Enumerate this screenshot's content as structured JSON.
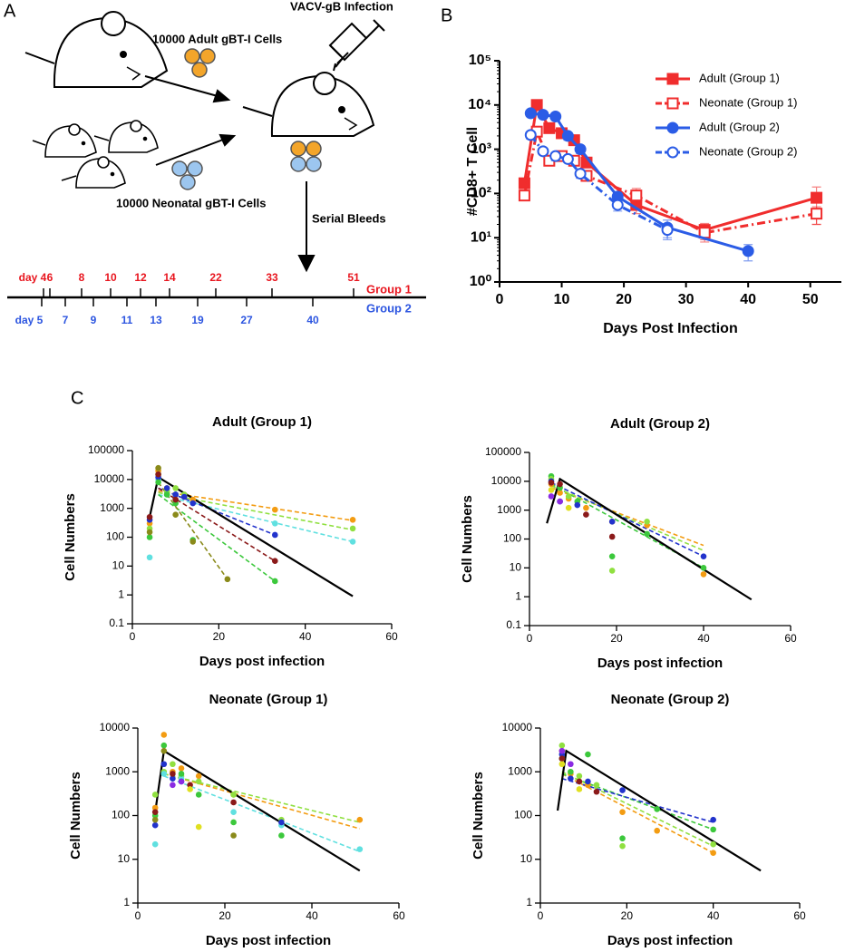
{
  "panel_labels": [
    "A",
    "B",
    "C"
  ],
  "diagram": {
    "infection": "VACV-gB Infection",
    "adult_cells": "10000 Adult gBT-I Cells",
    "neonatal_cells": "10000 Neonatal gBT-I Cells",
    "serial_bleeds": "Serial Bleeds",
    "group1_label": "Group 1",
    "group2_label": "Group 2",
    "group1_days": [
      "day 4",
      "6",
      "8",
      "10",
      "12",
      "14",
      "22",
      "33",
      "51"
    ],
    "group2_days": [
      "day 5",
      "7",
      "9",
      "11",
      "13",
      "19",
      "27",
      "40"
    ]
  },
  "chart_data": [
    {
      "type": "line",
      "xlabel": "Days Post Infection",
      "ylabel": "#CD8+ T Cell",
      "log_y": true,
      "xlim": [
        0,
        55
      ],
      "xticks": [
        0,
        10,
        20,
        30,
        40,
        50
      ],
      "ylim": [
        1,
        100000
      ],
      "yticks": [
        {
          "value": 1,
          "label": "10⁰"
        },
        {
          "value": 10,
          "label": "10¹"
        },
        {
          "value": 100,
          "label": "10²"
        },
        {
          "value": 1000,
          "label": "10³"
        },
        {
          "value": 10000,
          "label": "10⁴"
        },
        {
          "value": 100000,
          "label": "10⁵"
        }
      ],
      "legend": "top-right",
      "series": [
        {
          "name": "Adult (Group 1)",
          "color": "#f02d2d",
          "marker": "square",
          "filled": true,
          "dashed": false,
          "x": [
            4,
            6,
            8,
            10,
            12,
            14,
            22,
            33,
            51
          ],
          "values": [
            170,
            10000,
            3000,
            2300,
            1600,
            500,
            55,
            15,
            80
          ],
          "errors": [
            30,
            1500,
            500,
            400,
            300,
            100,
            20,
            6,
            60
          ]
        },
        {
          "name": "Neonate (Group 1)",
          "color": "#f02d2d",
          "marker": "square",
          "filled": false,
          "dashed": true,
          "x": [
            4,
            6,
            8,
            10,
            12,
            14,
            22,
            33,
            51
          ],
          "values": [
            90,
            2500,
            550,
            700,
            550,
            250,
            90,
            13,
            35
          ],
          "errors": [
            20,
            500,
            100,
            150,
            100,
            60,
            40,
            5,
            15
          ]
        },
        {
          "name": "Adult  (Group 2)",
          "color": "#2b5ce6",
          "marker": "circle",
          "filled": true,
          "dashed": false,
          "x": [
            5,
            7,
            9,
            11,
            13,
            19,
            27,
            40
          ],
          "values": [
            6500,
            6000,
            5500,
            2000,
            1000,
            85,
            17,
            5
          ],
          "errors": [
            1000,
            1000,
            1000,
            400,
            200,
            20,
            8,
            2
          ]
        },
        {
          "name": "Neonate (Group 2)",
          "color": "#2b5ce6",
          "marker": "circle",
          "filled": false,
          "dashed": true,
          "x": [
            5,
            7,
            9,
            11,
            13,
            19,
            27
          ],
          "values": [
            2100,
            900,
            700,
            600,
            280,
            55,
            15
          ],
          "errors": [
            400,
            150,
            150,
            100,
            60,
            15,
            5
          ]
        }
      ]
    },
    {
      "type": "scatter",
      "title": "Adult (Group 1)",
      "xlabel": "Days post infection",
      "ylabel": "Cell Numbers",
      "log_y": true,
      "xlim": [
        0,
        60
      ],
      "xticks": [
        0,
        20,
        40,
        60
      ],
      "ylim": [
        0.1,
        100000
      ],
      "yticks": [
        0.1,
        1,
        10,
        100,
        1000,
        10000,
        100000
      ],
      "series": [
        {
          "color": "#f39c12",
          "x": [
            4,
            6,
            8,
            10,
            12,
            14,
            33,
            51
          ],
          "values": [
            300,
            20000,
            5000,
            3000,
            2500,
            2000,
            900,
            400
          ]
        },
        {
          "color": "#90e040",
          "x": [
            4,
            6,
            8,
            10,
            12,
            51
          ],
          "values": [
            200,
            15000,
            4000,
            5000,
            3000,
            200
          ]
        },
        {
          "color": "#60e0e0",
          "x": [
            4,
            6,
            8,
            10,
            33,
            51
          ],
          "values": [
            20,
            10000,
            3000,
            3000,
            300,
            70
          ]
        },
        {
          "color": "#2233cc",
          "x": [
            4,
            6,
            8,
            10,
            12,
            14,
            33
          ],
          "values": [
            400,
            12000,
            5000,
            3000,
            2500,
            1500,
            120
          ]
        },
        {
          "color": "#3cc83c",
          "x": [
            4,
            6,
            8,
            10,
            14,
            33
          ],
          "values": [
            100,
            8000,
            3000,
            1500,
            80,
            3
          ]
        },
        {
          "color": "#8a8a1a",
          "x": [
            4,
            6,
            10,
            14,
            22
          ],
          "values": [
            150,
            25000,
            600,
            70,
            3.5
          ]
        },
        {
          "color": "#8b1a1a",
          "x": [
            4,
            6,
            10,
            33
          ],
          "values": [
            500,
            15000,
            2000,
            15
          ]
        }
      ],
      "lines": [
        {
          "color": "#f39c12",
          "dashed": true,
          "x": [
            6,
            51
          ],
          "values": [
            4000,
            380
          ]
        },
        {
          "color": "#90e040",
          "dashed": true,
          "x": [
            6,
            51
          ],
          "values": [
            3500,
            180
          ]
        },
        {
          "color": "#60e0e0",
          "dashed": true,
          "x": [
            6,
            51
          ],
          "values": [
            3000,
            70
          ]
        },
        {
          "color": "#2233cc",
          "dashed": true,
          "x": [
            6,
            33
          ],
          "values": [
            5000,
            120
          ]
        },
        {
          "color": "#3cc83c",
          "dashed": true,
          "x": [
            6,
            33
          ],
          "values": [
            3000,
            3
          ]
        },
        {
          "color": "#8a8a1a",
          "dashed": true,
          "x": [
            6,
            22
          ],
          "values": [
            8000,
            3.5
          ]
        },
        {
          "color": "#8b1a1a",
          "dashed": true,
          "x": [
            6,
            33
          ],
          "values": [
            5000,
            15
          ]
        },
        {
          "color": "#000000",
          "dashed": false,
          "x": [
            4,
            6,
            51
          ],
          "values": [
            500,
            12000,
            0.9
          ]
        }
      ]
    },
    {
      "type": "scatter",
      "title": "Adult (Group 2)",
      "xlabel": "Days post infection",
      "ylabel": "Cell Numbers",
      "log_y": true,
      "xlim": [
        0,
        60
      ],
      "xticks": [
        0,
        20,
        40,
        60
      ],
      "ylim": [
        0.1,
        100000
      ],
      "yticks": [
        0.1,
        1,
        10,
        100,
        1000,
        10000,
        100000
      ],
      "series": [
        {
          "color": "#f39c12",
          "x": [
            5,
            7,
            9,
            13,
            19,
            27,
            40
          ],
          "values": [
            8000,
            4000,
            2500,
            1200,
            400,
            300,
            6
          ]
        },
        {
          "color": "#3cc83c",
          "x": [
            5,
            7,
            11,
            19,
            27,
            40
          ],
          "values": [
            15000,
            6000,
            2000,
            25,
            150,
            10
          ]
        },
        {
          "color": "#90e040",
          "x": [
            5,
            9,
            19,
            27
          ],
          "values": [
            12000,
            3000,
            8,
            400
          ]
        },
        {
          "color": "#2233cc",
          "x": [
            5,
            7,
            11,
            19,
            40
          ],
          "values": [
            10000,
            2000,
            1500,
            400,
            25
          ]
        },
        {
          "color": "#8b1a1a",
          "x": [
            5,
            7,
            13,
            19
          ],
          "values": [
            9000,
            8000,
            700,
            120
          ]
        },
        {
          "color": "#8a2be2",
          "x": [
            5,
            7
          ],
          "values": [
            3000,
            2000
          ]
        },
        {
          "color": "#e0e020",
          "x": [
            5,
            9
          ],
          "values": [
            5000,
            1200
          ]
        }
      ],
      "lines": [
        {
          "color": "#f39c12",
          "dashed": true,
          "x": [
            5,
            40
          ],
          "values": [
            6000,
            60
          ]
        },
        {
          "color": "#3cc83c",
          "dashed": true,
          "x": [
            5,
            40
          ],
          "values": [
            8000,
            10
          ]
        },
        {
          "color": "#90e040",
          "dashed": true,
          "x": [
            5,
            40
          ],
          "values": [
            7000,
            40
          ]
        },
        {
          "color": "#2233cc",
          "dashed": true,
          "x": [
            5,
            40
          ],
          "values": [
            9000,
            25
          ]
        },
        {
          "color": "#000000",
          "dashed": false,
          "x": [
            4,
            7,
            51
          ],
          "values": [
            350,
            12000,
            0.8
          ]
        }
      ]
    },
    {
      "type": "scatter",
      "title": "Neonate (Group 1)",
      "xlabel": "Days post infection",
      "ylabel": "Cell Numbers",
      "log_y": true,
      "xlim": [
        0,
        60
      ],
      "xticks": [
        0,
        20,
        40,
        60
      ],
      "ylim": [
        1,
        10000
      ],
      "yticks": [
        1,
        10,
        100,
        1000,
        10000
      ],
      "series": [
        {
          "color": "#f39c12",
          "x": [
            4,
            6,
            8,
            10,
            14,
            22,
            51
          ],
          "values": [
            150,
            7000,
            1000,
            1200,
            800,
            300,
            80
          ]
        },
        {
          "color": "#90e040",
          "x": [
            4,
            6,
            8,
            10,
            14,
            22,
            33
          ],
          "values": [
            300,
            1000,
            1500,
            800,
            600,
            300,
            80
          ]
        },
        {
          "color": "#60e0e0",
          "x": [
            4,
            6,
            10,
            22,
            33,
            51
          ],
          "values": [
            22,
            900,
            700,
            120,
            60,
            17
          ]
        },
        {
          "color": "#2233cc",
          "x": [
            4,
            6,
            8,
            10,
            33
          ],
          "values": [
            60,
            1500,
            700,
            600,
            70
          ]
        },
        {
          "color": "#3cc83c",
          "x": [
            4,
            6,
            10,
            14,
            22,
            33
          ],
          "values": [
            100,
            4000,
            900,
            300,
            70,
            35
          ]
        },
        {
          "color": "#8a8a1a",
          "x": [
            4,
            6,
            22
          ],
          "values": [
            80,
            3000,
            35
          ]
        },
        {
          "color": "#8b1a1a",
          "x": [
            4,
            8,
            12,
            22
          ],
          "values": [
            120,
            900,
            500,
            200
          ]
        },
        {
          "color": "#e0e020",
          "x": [
            12,
            14
          ],
          "values": [
            400,
            55
          ]
        },
        {
          "color": "#8a2be2",
          "x": [
            8,
            10
          ],
          "values": [
            500,
            600
          ]
        }
      ],
      "lines": [
        {
          "color": "#f39c12",
          "dashed": true,
          "x": [
            6,
            51
          ],
          "values": [
            900,
            50
          ]
        },
        {
          "color": "#90e040",
          "dashed": true,
          "x": [
            6,
            51
          ],
          "values": [
            900,
            70
          ]
        },
        {
          "color": "#60e0e0",
          "dashed": true,
          "x": [
            6,
            51
          ],
          "values": [
            800,
            15
          ]
        },
        {
          "color": "#000000",
          "dashed": false,
          "x": [
            4,
            6,
            51
          ],
          "values": [
            120,
            3000,
            5.5
          ]
        }
      ]
    },
    {
      "type": "scatter",
      "title": "Neonate (Group 2)",
      "xlabel": "Days post infection",
      "ylabel": "Cell Numbers",
      "log_y": true,
      "xlim": [
        0,
        60
      ],
      "xticks": [
        0,
        20,
        40,
        60
      ],
      "ylim": [
        1,
        10000
      ],
      "yticks": [
        1,
        10,
        100,
        1000,
        10000
      ],
      "series": [
        {
          "color": "#f39c12",
          "x": [
            5,
            7,
            11,
            19,
            27,
            40
          ],
          "values": [
            3000,
            900,
            500,
            120,
            45,
            14
          ]
        },
        {
          "color": "#3cc83c",
          "x": [
            5,
            7,
            11,
            19,
            27,
            40
          ],
          "values": [
            2000,
            1000,
            2500,
            30,
            140,
            48
          ]
        },
        {
          "color": "#90e040",
          "x": [
            5,
            9,
            13,
            19,
            40
          ],
          "values": [
            4000,
            800,
            500,
            20,
            22
          ]
        },
        {
          "color": "#2233cc",
          "x": [
            5,
            7,
            11,
            19,
            40
          ],
          "values": [
            2500,
            700,
            600,
            380,
            80
          ]
        },
        {
          "color": "#8b1a1a",
          "x": [
            5,
            9,
            13
          ],
          "values": [
            2000,
            600,
            350
          ]
        },
        {
          "color": "#8a2be2",
          "x": [
            5,
            7
          ],
          "values": [
            3000,
            1500
          ]
        },
        {
          "color": "#e0e020",
          "x": [
            5,
            9
          ],
          "values": [
            1500,
            400
          ]
        }
      ],
      "lines": [
        {
          "color": "#f39c12",
          "dashed": true,
          "x": [
            5,
            40
          ],
          "values": [
            900,
            14
          ]
        },
        {
          "color": "#3cc83c",
          "dashed": true,
          "x": [
            5,
            40
          ],
          "values": [
            900,
            48
          ]
        },
        {
          "color": "#90e040",
          "dashed": true,
          "x": [
            5,
            40
          ],
          "values": [
            1000,
            20
          ]
        },
        {
          "color": "#2233cc",
          "dashed": true,
          "x": [
            5,
            40
          ],
          "values": [
            700,
            70
          ]
        },
        {
          "color": "#000000",
          "dashed": false,
          "x": [
            4,
            6,
            51
          ],
          "values": [
            130,
            3000,
            5.5
          ]
        }
      ]
    }
  ]
}
